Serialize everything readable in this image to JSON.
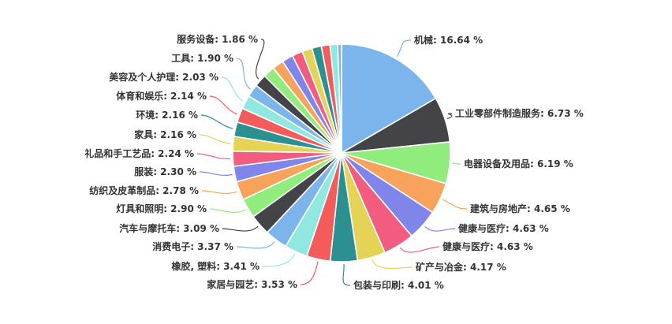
{
  "chart_data": {
    "type": "pie",
    "title": "",
    "legend_position": "none",
    "background_color": "#ffffff",
    "label_color": "#333333",
    "label_format": "{name}: {value} %",
    "value_decimals": 2,
    "start_angle_deg_from_top": 0,
    "direction": "clockwise",
    "slices": [
      {
        "name": "机械",
        "value": 16.64,
        "color": "#7cb5ec",
        "labeled": true
      },
      {
        "name": "工业零部件制造服务",
        "value": 6.73,
        "color": "#434348",
        "labeled": true
      },
      {
        "name": "电器设备及用品",
        "value": 6.19,
        "color": "#90ed7d",
        "labeled": true
      },
      {
        "name": "建筑与房地产",
        "value": 4.65,
        "color": "#f7a35c",
        "labeled": true
      },
      {
        "name": "健康与医疗",
        "value": 4.63,
        "color": "#8085e9",
        "labeled": true
      },
      {
        "name": "健康与医疗",
        "value": 4.63,
        "color": "#f15c80",
        "labeled": true
      },
      {
        "name": "矿产与冶金",
        "value": 4.17,
        "color": "#e4d354",
        "labeled": true
      },
      {
        "name": "包装与印刷",
        "value": 4.01,
        "color": "#2b908f",
        "labeled": true
      },
      {
        "name": "家居与园艺",
        "value": 3.53,
        "color": "#f45b5b",
        "labeled": true
      },
      {
        "name": "橡胶, 塑料",
        "value": 3.41,
        "color": "#91e8e1",
        "labeled": true
      },
      {
        "name": "消费电子",
        "value": 3.37,
        "color": "#7cb5ec",
        "labeled": true
      },
      {
        "name": "汽车与摩托车",
        "value": 3.09,
        "color": "#434348",
        "labeled": true
      },
      {
        "name": "灯具和照明",
        "value": 2.9,
        "color": "#90ed7d",
        "labeled": true
      },
      {
        "name": "纺织及皮革制品",
        "value": 2.78,
        "color": "#f7a35c",
        "labeled": true
      },
      {
        "name": "服装",
        "value": 2.3,
        "color": "#8085e9",
        "labeled": true
      },
      {
        "name": "礼品和手工艺品",
        "value": 2.24,
        "color": "#f15c80",
        "labeled": true
      },
      {
        "name": "家具",
        "value": 2.16,
        "color": "#e4d354",
        "labeled": true
      },
      {
        "name": "环境",
        "value": 2.16,
        "color": "#2b908f",
        "labeled": true
      },
      {
        "name": "体育和娱乐",
        "value": 2.14,
        "color": "#f45b5b",
        "labeled": true
      },
      {
        "name": "美容及个人护理",
        "value": 2.03,
        "color": "#91e8e1",
        "labeled": true
      },
      {
        "name": "工具",
        "value": 1.9,
        "color": "#7cb5ec",
        "labeled": true
      },
      {
        "name": "服务设备",
        "value": 1.86,
        "color": "#434348",
        "labeled": true
      },
      {
        "name": "",
        "value": 1.72,
        "color": "#90ed7d",
        "labeled": false,
        "estimated": true
      },
      {
        "name": "",
        "value": 1.68,
        "color": "#f7a35c",
        "labeled": false,
        "estimated": true
      },
      {
        "name": "",
        "value": 1.64,
        "color": "#8085e9",
        "labeled": false,
        "estimated": true
      },
      {
        "name": "",
        "value": 1.56,
        "color": "#f15c80",
        "labeled": false,
        "estimated": true
      },
      {
        "name": "",
        "value": 1.5,
        "color": "#e4d354",
        "labeled": false,
        "estimated": true
      },
      {
        "name": "",
        "value": 1.4,
        "color": "#2b908f",
        "labeled": false,
        "estimated": true
      },
      {
        "name": "",
        "value": 1.28,
        "color": "#f45b5b",
        "labeled": false,
        "estimated": true
      },
      {
        "name": "",
        "value": 1.14,
        "color": "#91e8e1",
        "labeled": false,
        "estimated": true
      },
      {
        "name": "",
        "value": 0.56,
        "color": "#7cb5ec",
        "labeled": false,
        "estimated": true
      }
    ]
  }
}
